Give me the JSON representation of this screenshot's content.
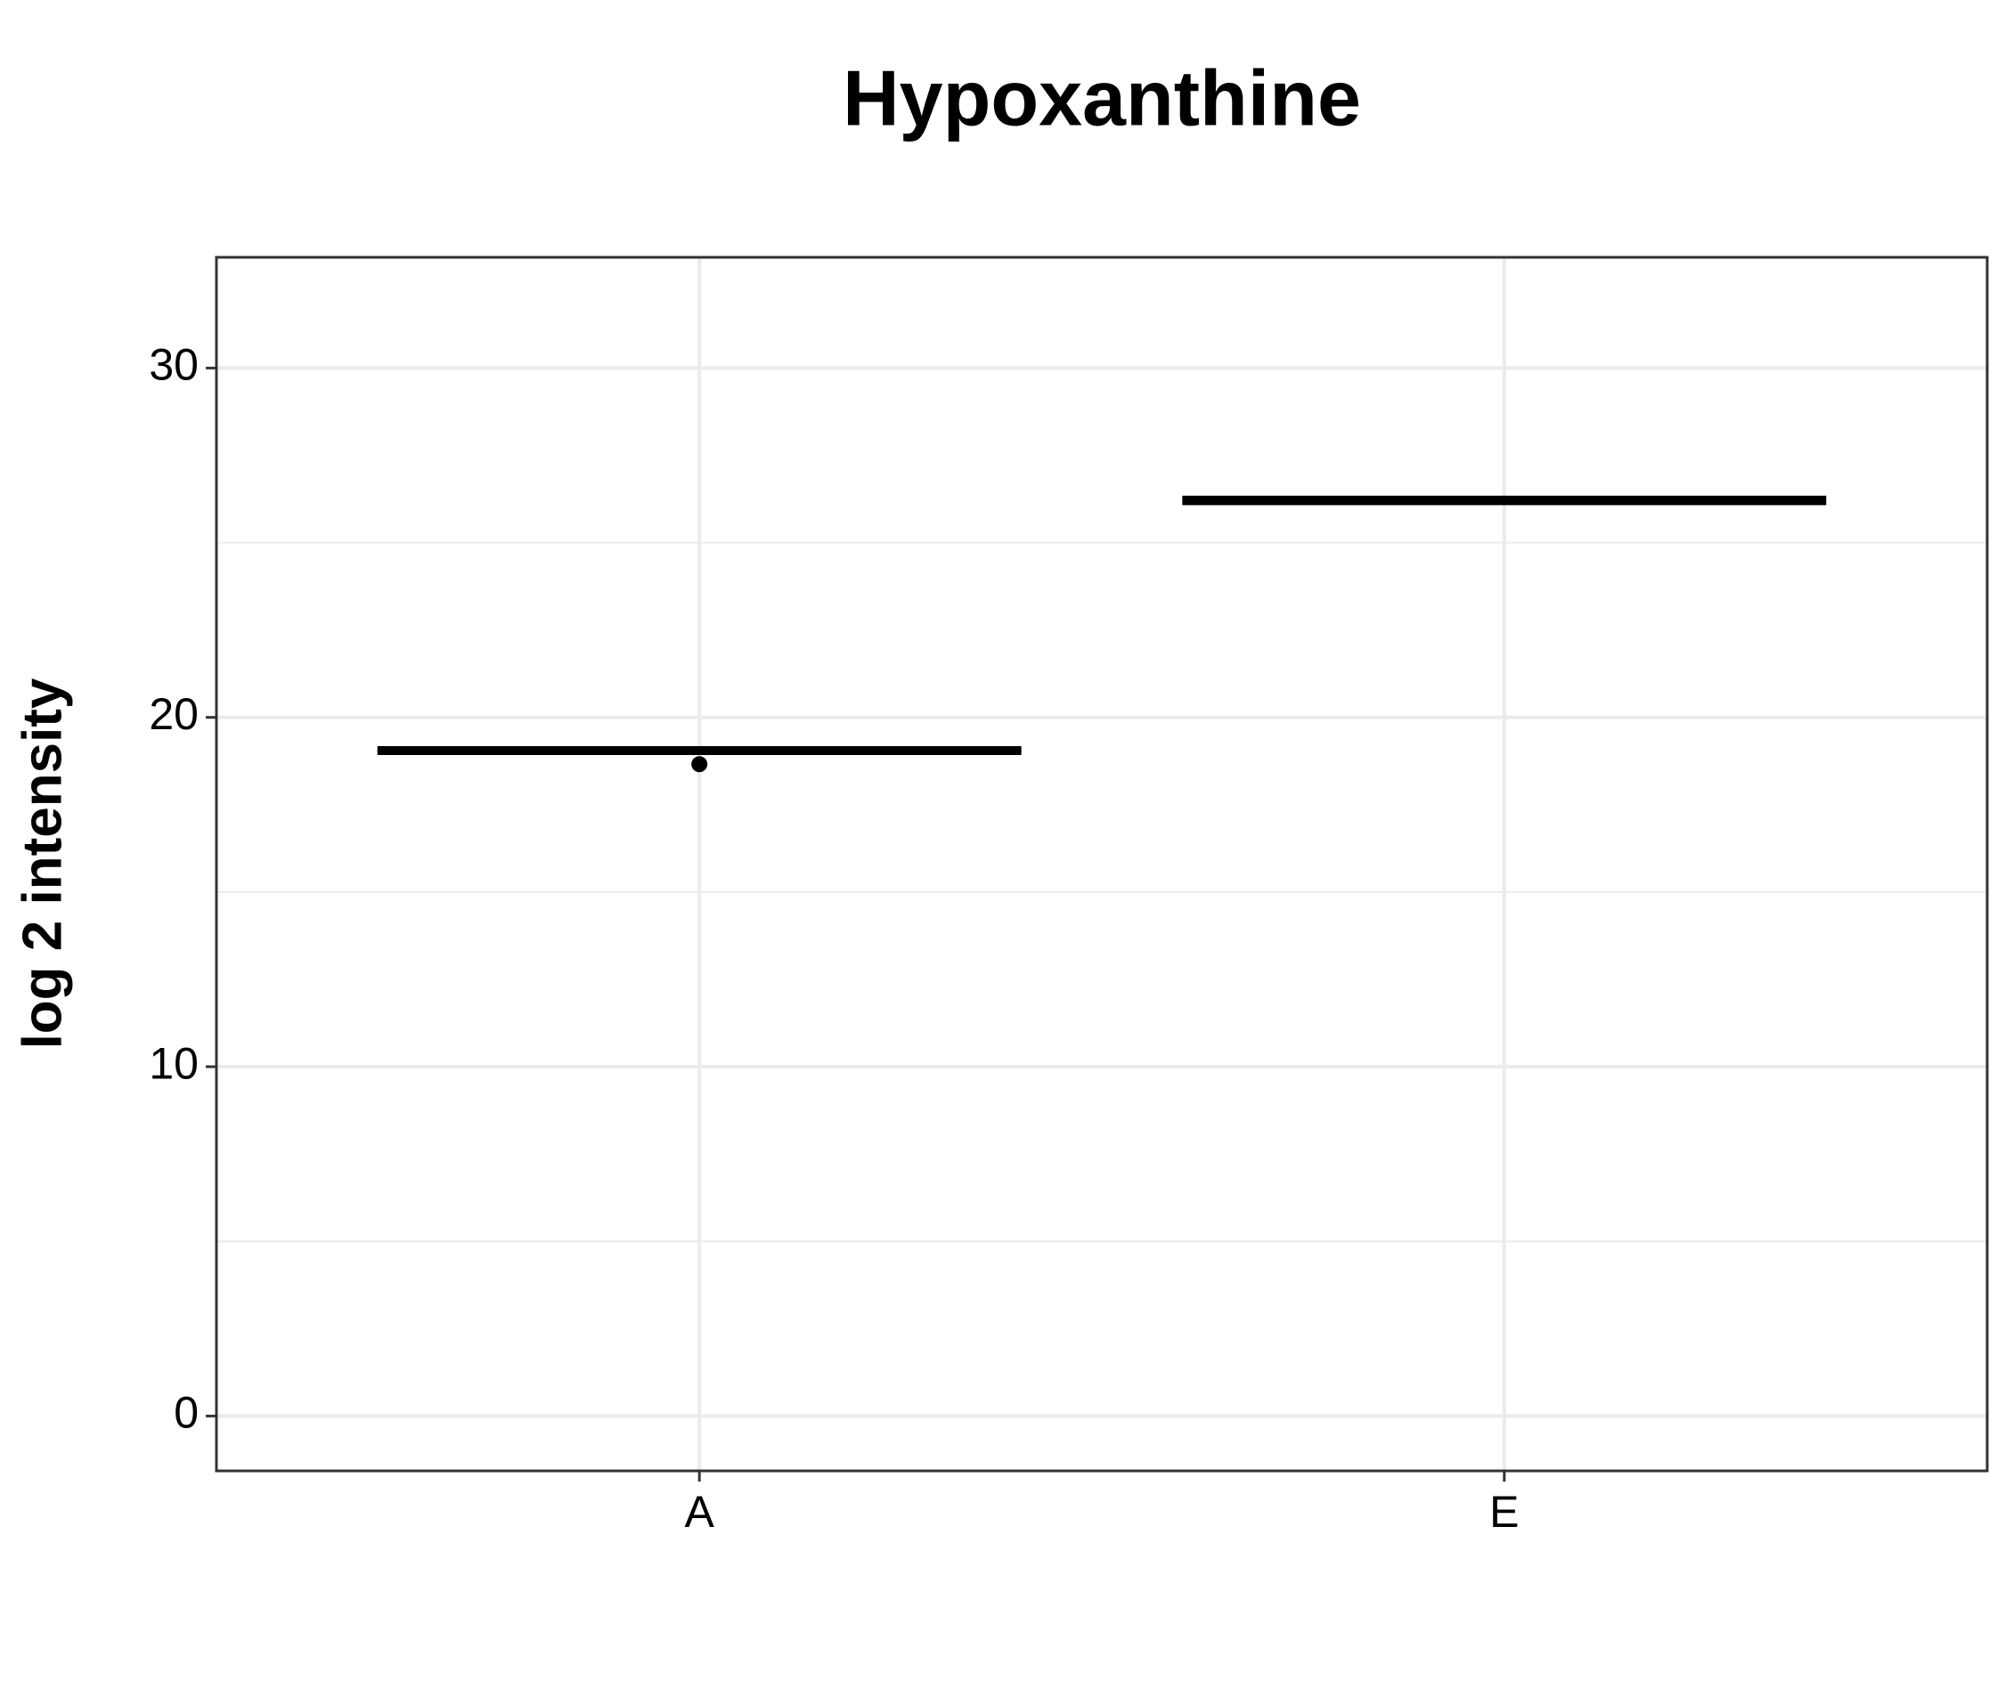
{
  "chart_data": {
    "type": "boxplot",
    "title": "Hypoxanthine",
    "ylabel": "log 2 intensity",
    "categories": [
      "A",
      "E"
    ],
    "boxes": [
      {
        "whislo": 19.0,
        "q1": 19.0,
        "med": 19.05,
        "q3": 19.1,
        "whishi": 19.1,
        "fliers": [
          18.66
        ]
      },
      {
        "whislo": 26.15,
        "q1": 26.15,
        "med": 26.2,
        "q3": 26.27,
        "whishi": 26.27,
        "fliers": []
      }
    ],
    "color": "#000000",
    "ylim": [
      -1.57,
      33.17
    ],
    "yticks": [
      0,
      10,
      20,
      30
    ],
    "grid": true
  }
}
